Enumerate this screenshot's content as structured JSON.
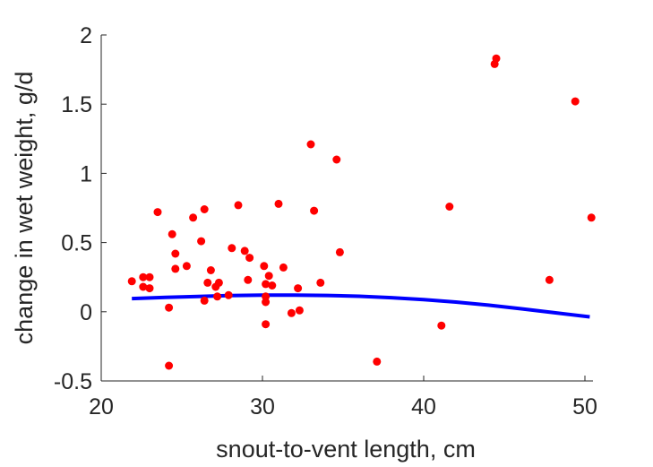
{
  "chart_data": {
    "type": "scatter",
    "xlabel": "snout-to-vent length, cm",
    "ylabel": "change in wet weight, g/d",
    "xlim": [
      20,
      50.5
    ],
    "ylim": [
      -0.5,
      2
    ],
    "x_ticks": [
      20,
      30,
      40,
      50
    ],
    "y_ticks": [
      -0.5,
      0,
      0.5,
      1,
      1.5,
      2
    ],
    "x_tick_labels": [
      "20",
      "30",
      "40",
      "50"
    ],
    "y_tick_labels": [
      "-0.5",
      "0",
      "0.5",
      "1",
      "1.5",
      "2"
    ],
    "grid": false,
    "series": [
      {
        "kind": "scatter",
        "color": "#ff0000",
        "points": [
          {
            "x": 21.9,
            "y": 0.22
          },
          {
            "x": 22.6,
            "y": 0.25
          },
          {
            "x": 22.6,
            "y": 0.18
          },
          {
            "x": 23.0,
            "y": 0.25
          },
          {
            "x": 23.0,
            "y": 0.17
          },
          {
            "x": 23.5,
            "y": 0.72
          },
          {
            "x": 24.2,
            "y": 0.03
          },
          {
            "x": 24.2,
            "y": -0.39
          },
          {
            "x": 24.4,
            "y": 0.56
          },
          {
            "x": 24.6,
            "y": 0.42
          },
          {
            "x": 24.6,
            "y": 0.31
          },
          {
            "x": 25.3,
            "y": 0.33
          },
          {
            "x": 25.7,
            "y": 0.68
          },
          {
            "x": 26.2,
            "y": 0.51
          },
          {
            "x": 26.4,
            "y": 0.74
          },
          {
            "x": 26.4,
            "y": 0.08
          },
          {
            "x": 26.6,
            "y": 0.21
          },
          {
            "x": 26.8,
            "y": 0.3
          },
          {
            "x": 27.1,
            "y": 0.18
          },
          {
            "x": 27.2,
            "y": 0.11
          },
          {
            "x": 27.3,
            "y": 0.21
          },
          {
            "x": 27.9,
            "y": 0.12
          },
          {
            "x": 28.1,
            "y": 0.46
          },
          {
            "x": 28.5,
            "y": 0.77
          },
          {
            "x": 28.9,
            "y": 0.44
          },
          {
            "x": 29.1,
            "y": 0.23
          },
          {
            "x": 29.2,
            "y": 0.39
          },
          {
            "x": 30.1,
            "y": 0.33
          },
          {
            "x": 30.2,
            "y": 0.2
          },
          {
            "x": 30.2,
            "y": 0.11
          },
          {
            "x": 30.2,
            "y": 0.07
          },
          {
            "x": 30.2,
            "y": -0.09
          },
          {
            "x": 30.4,
            "y": 0.26
          },
          {
            "x": 30.6,
            "y": 0.19
          },
          {
            "x": 31.0,
            "y": 0.78
          },
          {
            "x": 31.3,
            "y": 0.32
          },
          {
            "x": 31.8,
            "y": -0.01
          },
          {
            "x": 32.2,
            "y": 0.17
          },
          {
            "x": 32.3,
            "y": 0.01
          },
          {
            "x": 33.0,
            "y": 1.21
          },
          {
            "x": 33.2,
            "y": 0.73
          },
          {
            "x": 33.6,
            "y": 0.21
          },
          {
            "x": 34.6,
            "y": 1.1
          },
          {
            "x": 34.8,
            "y": 0.43
          },
          {
            "x": 37.1,
            "y": -0.36
          },
          {
            "x": 41.1,
            "y": -0.1
          },
          {
            "x": 41.6,
            "y": 0.76
          },
          {
            "x": 44.4,
            "y": 1.79
          },
          {
            "x": 44.5,
            "y": 1.83
          },
          {
            "x": 47.8,
            "y": 0.23
          },
          {
            "x": 49.4,
            "y": 1.52
          },
          {
            "x": 50.4,
            "y": 0.68
          }
        ]
      },
      {
        "kind": "line",
        "color": "#0000ff",
        "points": [
          {
            "x": 21.9,
            "y": 0.095
          },
          {
            "x": 24.0,
            "y": 0.104
          },
          {
            "x": 26.0,
            "y": 0.111
          },
          {
            "x": 28.0,
            "y": 0.117
          },
          {
            "x": 30.0,
            "y": 0.12
          },
          {
            "x": 32.0,
            "y": 0.12
          },
          {
            "x": 34.0,
            "y": 0.118
          },
          {
            "x": 36.0,
            "y": 0.112
          },
          {
            "x": 38.0,
            "y": 0.102
          },
          {
            "x": 40.0,
            "y": 0.088
          },
          {
            "x": 42.0,
            "y": 0.07
          },
          {
            "x": 44.0,
            "y": 0.048
          },
          {
            "x": 46.0,
            "y": 0.022
          },
          {
            "x": 48.0,
            "y": -0.005
          },
          {
            "x": 50.3,
            "y": -0.037
          }
        ]
      }
    ]
  }
}
